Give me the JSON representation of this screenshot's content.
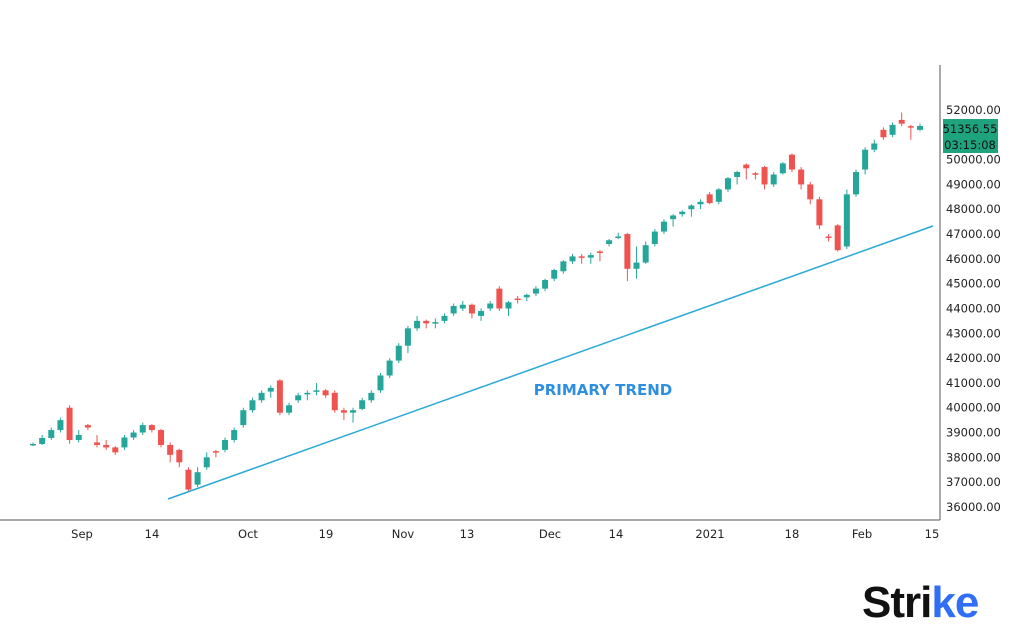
{
  "chart_data": {
    "type": "candlestick",
    "title": "",
    "xlabel": "",
    "ylabel": "",
    "ylim": [
      35700,
      53500
    ],
    "grid": false,
    "x_tick_labels": [
      "Sep",
      "14",
      "Oct",
      "19",
      "Nov",
      "13",
      "Dec",
      "14",
      "2021",
      "18",
      "Feb",
      "15"
    ],
    "y_tick_labels": [
      "52000.00",
      "51000.00",
      "50000.00",
      "49000.00",
      "48000.00",
      "47000.00",
      "46000.00",
      "45000.00",
      "44000.00",
      "43000.00",
      "42000.00",
      "41000.00",
      "40000.00",
      "39000.00",
      "38000.00",
      "37000.00",
      "36000.00"
    ],
    "y_ticks": [
      52000,
      51000,
      50000,
      49000,
      48000,
      47000,
      46000,
      45000,
      44000,
      43000,
      42000,
      41000,
      40000,
      39000,
      38000,
      37000,
      36000
    ],
    "candles_ohlc": [
      [
        38500,
        38600,
        38450,
        38540
      ],
      [
        38540,
        38900,
        38500,
        38780
      ],
      [
        38780,
        39200,
        38700,
        39100
      ],
      [
        39100,
        39600,
        39000,
        39500
      ],
      [
        40000,
        40100,
        38550,
        38700
      ],
      [
        38700,
        39100,
        38600,
        38900
      ],
      [
        39300,
        39350,
        39100,
        39200
      ],
      [
        38600,
        38900,
        38400,
        38500
      ],
      [
        38500,
        38700,
        38300,
        38400
      ],
      [
        38400,
        38450,
        38100,
        38200
      ],
      [
        38400,
        38900,
        38300,
        38800
      ],
      [
        38800,
        39100,
        38700,
        39000
      ],
      [
        39000,
        39400,
        38900,
        39300
      ],
      [
        39300,
        39350,
        39000,
        39100
      ],
      [
        39100,
        39150,
        38400,
        38500
      ],
      [
        38500,
        38600,
        37800,
        38100
      ],
      [
        38300,
        38350,
        37600,
        37800
      ],
      [
        37500,
        37600,
        36600,
        36700
      ],
      [
        36900,
        37600,
        36800,
        37400
      ],
      [
        37600,
        38200,
        37500,
        38000
      ],
      [
        38250,
        38300,
        38000,
        38200
      ],
      [
        38300,
        38800,
        38200,
        38700
      ],
      [
        38700,
        39200,
        38600,
        39100
      ],
      [
        39300,
        40000,
        39200,
        39900
      ],
      [
        39900,
        40400,
        39800,
        40300
      ],
      [
        40300,
        40700,
        40200,
        40600
      ],
      [
        40650,
        40900,
        40400,
        40800
      ],
      [
        41100,
        41150,
        39700,
        39800
      ],
      [
        39800,
        40200,
        39700,
        40100
      ],
      [
        40300,
        40600,
        40200,
        40500
      ],
      [
        40550,
        40700,
        40300,
        40600
      ],
      [
        40650,
        41000,
        40500,
        40700
      ],
      [
        40700,
        40750,
        40400,
        40500
      ],
      [
        40600,
        40700,
        39800,
        39900
      ],
      [
        39900,
        40000,
        39500,
        39800
      ],
      [
        39800,
        40000,
        39400,
        39900
      ],
      [
        39950,
        40400,
        39900,
        40300
      ],
      [
        40300,
        40700,
        40200,
        40600
      ],
      [
        40700,
        41400,
        40600,
        41300
      ],
      [
        41300,
        42000,
        41200,
        41900
      ],
      [
        41900,
        42600,
        41800,
        42500
      ],
      [
        42500,
        43300,
        42200,
        43200
      ],
      [
        43200,
        43700,
        43100,
        43500
      ],
      [
        43500,
        43550,
        43200,
        43400
      ],
      [
        43400,
        43600,
        43200,
        43450
      ],
      [
        43500,
        43800,
        43400,
        43700
      ],
      [
        43800,
        44200,
        43700,
        44100
      ],
      [
        44000,
        44300,
        43900,
        44150
      ],
      [
        44150,
        44200,
        43600,
        43800
      ],
      [
        43700,
        44000,
        43500,
        43900
      ],
      [
        44000,
        44300,
        43900,
        44200
      ],
      [
        44800,
        44900,
        43900,
        44000
      ],
      [
        44000,
        44300,
        43700,
        44250
      ],
      [
        44400,
        44500,
        44200,
        44350
      ],
      [
        44450,
        44600,
        44300,
        44550
      ],
      [
        44600,
        44900,
        44500,
        44800
      ],
      [
        44800,
        45200,
        44700,
        45150
      ],
      [
        45200,
        45600,
        45100,
        45550
      ],
      [
        45500,
        45950,
        45400,
        45900
      ],
      [
        45900,
        46200,
        45800,
        46100
      ],
      [
        46100,
        46200,
        45800,
        46050
      ],
      [
        46050,
        46250,
        45800,
        46150
      ],
      [
        46300,
        46350,
        45900,
        46250
      ],
      [
        46600,
        46800,
        46500,
        46750
      ],
      [
        46850,
        47050,
        46800,
        46900
      ],
      [
        47000,
        47050,
        45100,
        45600
      ],
      [
        45600,
        46500,
        45200,
        45850
      ],
      [
        45850,
        46700,
        45800,
        46550
      ],
      [
        46600,
        47200,
        46500,
        47100
      ],
      [
        47100,
        47600,
        47000,
        47500
      ],
      [
        47600,
        47800,
        47300,
        47750
      ],
      [
        47800,
        47950,
        47700,
        47900
      ],
      [
        48000,
        48200,
        47700,
        48150
      ],
      [
        48200,
        48400,
        48000,
        48300
      ],
      [
        48600,
        48700,
        48200,
        48250
      ],
      [
        48300,
        48850,
        48200,
        48800
      ],
      [
        48800,
        49300,
        48700,
        49250
      ],
      [
        49300,
        49550,
        49000,
        49500
      ],
      [
        49800,
        49850,
        49200,
        49650
      ],
      [
        49450,
        49500,
        49200,
        49400
      ],
      [
        49700,
        49750,
        48800,
        49000
      ],
      [
        49000,
        49500,
        48900,
        49400
      ],
      [
        49450,
        49900,
        49400,
        49850
      ],
      [
        50200,
        50250,
        49500,
        49600
      ],
      [
        49600,
        49700,
        48800,
        49000
      ],
      [
        49000,
        49100,
        48200,
        48400
      ],
      [
        48400,
        48500,
        47200,
        47350
      ],
      [
        46900,
        47000,
        46700,
        46850
      ],
      [
        47350,
        47400,
        46300,
        46350
      ],
      [
        46500,
        48800,
        46400,
        48600
      ],
      [
        48600,
        49600,
        48500,
        49500
      ],
      [
        49600,
        50500,
        49400,
        50400
      ],
      [
        50400,
        50800,
        50300,
        50650
      ],
      [
        51200,
        51300,
        50800,
        50900
      ],
      [
        51000,
        51500,
        50900,
        51400
      ],
      [
        51600,
        51900,
        51350,
        51450
      ],
      [
        51350,
        51400,
        50800,
        51300
      ],
      [
        51200,
        51450,
        51150,
        51356.55
      ]
    ],
    "last_price_label": "51356.55",
    "countdown_label": "03:15:08",
    "trendline": {
      "label": "PRIMARY TREND",
      "from_price": 36300,
      "to_price": 47300
    },
    "colors": {
      "up": "#26a69a",
      "down": "#ef5350",
      "trendline": "#2aa8d8",
      "label": "#2e8fe0",
      "price_badge": "#1fa37e"
    }
  },
  "logo": {
    "text_main": "Stri",
    "text_accent": "ke"
  }
}
